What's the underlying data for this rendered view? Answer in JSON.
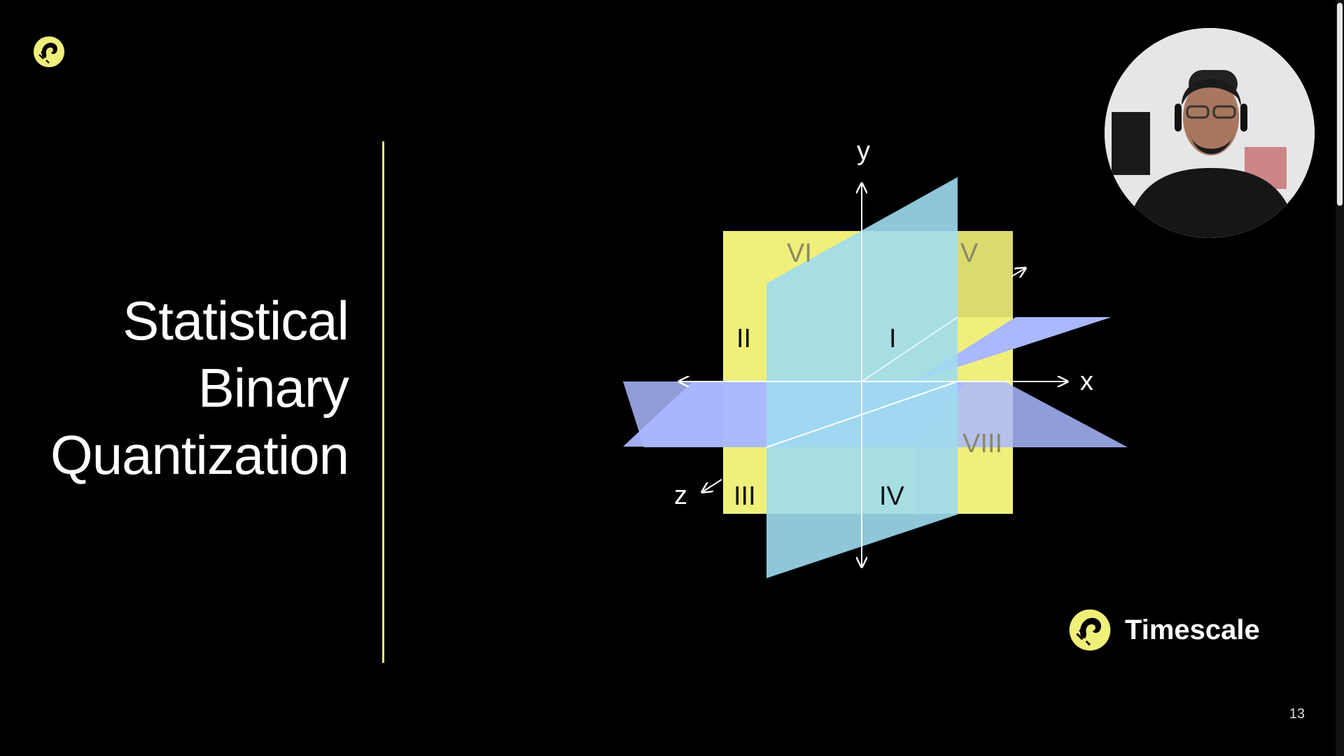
{
  "slide": {
    "title_lines": [
      "Statistical",
      "Binary",
      "Quantization"
    ],
    "page_number": "13"
  },
  "diagram": {
    "axis_labels": {
      "x": "x",
      "y": "y",
      "z": "z"
    },
    "octant_labels": [
      "I",
      "II",
      "III",
      "IV",
      "V",
      "VI",
      "VIII"
    ]
  },
  "brand": {
    "name": "Timescale",
    "logo_icon": "timescale-tiger-icon"
  },
  "icons": {
    "slide_logo": "timescale-tiger-icon"
  },
  "colors": {
    "background": "#000000",
    "accent_yellow": "#f0ef7a",
    "cyan_plane": "#9fdcf0",
    "periwinkle_plane": "#aab8ff",
    "divider": "#e7ea83"
  }
}
